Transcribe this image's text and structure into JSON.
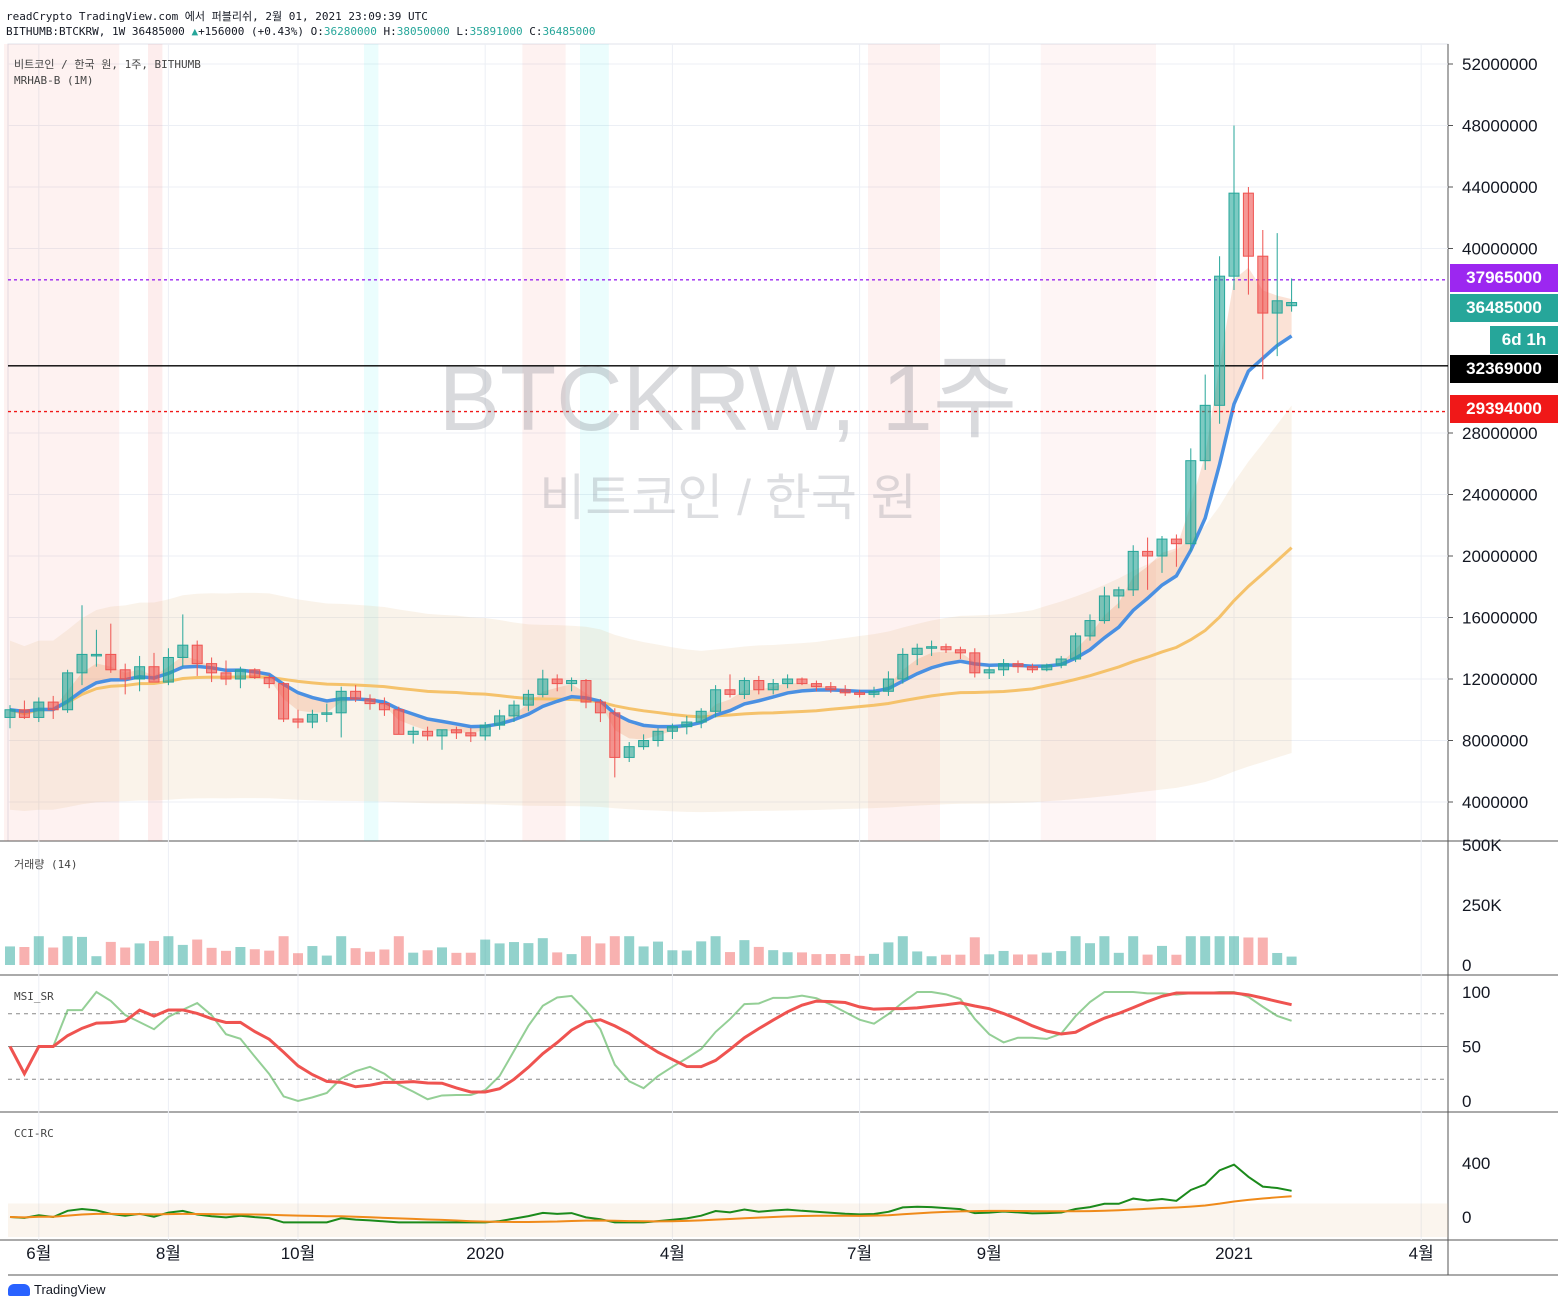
{
  "header": {
    "line1": "readCrypto TradingView.com 에서 퍼블리쉬, 2월 01, 2021 23:09:39 UTC",
    "line2_prefix": "BITHUMB:BTCKRW, 1W 36485000",
    "change": "+156000 (+0.43%)",
    "o_label": "O:",
    "o": "36280000",
    "h_label": "H:",
    "h": "38050000",
    "l_label": "L:",
    "l": "35891000",
    "c_label": "C:",
    "c": "36485000"
  },
  "main_pane": {
    "symbol_line": "비트코인 / 한국 원, 1주, BITHUMB",
    "indicator_line": "MRHAB-B (1M)",
    "watermark": "BTCKRW, 1주",
    "watermark_sub": "비트코인 / 한국 원"
  },
  "price_labels": [
    {
      "value": "37965000",
      "color": "#9c27f0"
    },
    {
      "value": "36485000",
      "color": "#26a69a"
    },
    {
      "value": "6d 1h",
      "color": "#26a69a"
    },
    {
      "value": "32369000",
      "color": "#000000"
    },
    {
      "value": "29394000",
      "color": "#f01818"
    }
  ],
  "volume_pane": {
    "title": "거래량 (14)",
    "ticks": [
      "500K",
      "250K",
      "0"
    ]
  },
  "stoch_pane": {
    "title": "MSI_SR",
    "ticks": [
      "100",
      "50",
      "0"
    ]
  },
  "cci_pane": {
    "title": "CCI-RC",
    "ticks": [
      "400",
      "0"
    ]
  },
  "footer": {
    "brand": "TradingView"
  },
  "colors": {
    "up": "#26a69a",
    "down": "#ef5350",
    "accent_purple": "#9c27f0",
    "accent_red": "#f01818"
  },
  "chart_data": {
    "type": "candlestick",
    "symbol": "BITHUMB:BTCKRW",
    "interval": "1W",
    "y_ticks": [
      4000000,
      8000000,
      12000000,
      16000000,
      20000000,
      24000000,
      28000000,
      40000000,
      44000000,
      48000000,
      52000000
    ],
    "x_ticks": [
      {
        "label": "6월",
        "index": 2
      },
      {
        "label": "8월",
        "index": 11
      },
      {
        "label": "10월",
        "index": 20
      },
      {
        "label": "2020",
        "index": 33
      },
      {
        "label": "4월",
        "index": 46
      },
      {
        "label": "7월",
        "index": 59
      },
      {
        "label": "9월",
        "index": 68
      },
      {
        "label": "2021",
        "index": 85
      },
      {
        "label": "4월",
        "index": 98
      }
    ],
    "horizontal_lines": [
      37965000,
      32369000,
      29394000
    ],
    "candles": [
      [
        9500000,
        10300000,
        8800000,
        10000000
      ],
      [
        10000000,
        10600000,
        9400000,
        9500000
      ],
      [
        9500000,
        10800000,
        9200000,
        10500000
      ],
      [
        10500000,
        10900000,
        9400000,
        10000000
      ],
      [
        10000000,
        12600000,
        9800000,
        12400000
      ],
      [
        12400000,
        16800000,
        11600000,
        13600000
      ],
      [
        13500000,
        15200000,
        12800000,
        13600000
      ],
      [
        13600000,
        15600000,
        12400000,
        12600000
      ],
      [
        12600000,
        13000000,
        11000000,
        12000000
      ],
      [
        12000000,
        13500000,
        11200000,
        12800000
      ],
      [
        12800000,
        13700000,
        11900000,
        11800000
      ],
      [
        11800000,
        14000000,
        11600000,
        13400000
      ],
      [
        13400000,
        16200000,
        12800000,
        14200000
      ],
      [
        14200000,
        14500000,
        12200000,
        13000000
      ],
      [
        13000000,
        13400000,
        11800000,
        12400000
      ],
      [
        12400000,
        13200000,
        11600000,
        12000000
      ],
      [
        12000000,
        12800000,
        11400000,
        12600000
      ],
      [
        12600000,
        12700000,
        12000000,
        12100000
      ],
      [
        12100000,
        12300000,
        11400000,
        11700000
      ],
      [
        11700000,
        11800000,
        9200000,
        9400000
      ],
      [
        9400000,
        10000000,
        8800000,
        9200000
      ],
      [
        9200000,
        10000000,
        8800000,
        9700000
      ],
      [
        9700000,
        10400000,
        9200000,
        9800000
      ],
      [
        9800000,
        11500000,
        8200000,
        11200000
      ],
      [
        11200000,
        11600000,
        10500000,
        10700000
      ],
      [
        10700000,
        11000000,
        10000000,
        10400000
      ],
      [
        10400000,
        10800000,
        9600000,
        10000000
      ],
      [
        10000000,
        10200000,
        8400000,
        8400000
      ],
      [
        8400000,
        8900000,
        7800000,
        8600000
      ],
      [
        8600000,
        8900000,
        8000000,
        8300000
      ],
      [
        8300000,
        8700000,
        7400000,
        8700000
      ],
      [
        8700000,
        8900000,
        8100000,
        8500000
      ],
      [
        8500000,
        8800000,
        7900000,
        8300000
      ],
      [
        8300000,
        9200000,
        8000000,
        9000000
      ],
      [
        9000000,
        10000000,
        8700000,
        9600000
      ],
      [
        9600000,
        10600000,
        9200000,
        10300000
      ],
      [
        10300000,
        11300000,
        9900000,
        11000000
      ],
      [
        11000000,
        12600000,
        10800000,
        12000000
      ],
      [
        12000000,
        12300000,
        11200000,
        11700000
      ],
      [
        11700000,
        12100000,
        11200000,
        11900000
      ],
      [
        11900000,
        12000000,
        10100000,
        10500000
      ],
      [
        10500000,
        10700000,
        9200000,
        9800000
      ],
      [
        9800000,
        10100000,
        5600000,
        6900000
      ],
      [
        6900000,
        7900000,
        6600000,
        7600000
      ],
      [
        7600000,
        8400000,
        7400000,
        8000000
      ],
      [
        8000000,
        8800000,
        7600000,
        8600000
      ],
      [
        8600000,
        9100000,
        8100000,
        8900000
      ],
      [
        8900000,
        9600000,
        8400000,
        9200000
      ],
      [
        9200000,
        10100000,
        8800000,
        9900000
      ],
      [
        9900000,
        11600000,
        9500000,
        11300000
      ],
      [
        11300000,
        12300000,
        10800000,
        11000000
      ],
      [
        11000000,
        12100000,
        10700000,
        11900000
      ],
      [
        11900000,
        12200000,
        11000000,
        11300000
      ],
      [
        11300000,
        12000000,
        11000000,
        11700000
      ],
      [
        11700000,
        12300000,
        11400000,
        12000000
      ],
      [
        12000000,
        12100000,
        11600000,
        11700000
      ],
      [
        11700000,
        11900000,
        11200000,
        11500000
      ],
      [
        11500000,
        11800000,
        11100000,
        11300000
      ],
      [
        11300000,
        11600000,
        10900000,
        11100000
      ],
      [
        11100000,
        11300000,
        10800000,
        11000000
      ],
      [
        11000000,
        11500000,
        10800000,
        11200000
      ],
      [
        11200000,
        12500000,
        10900000,
        12000000
      ],
      [
        12000000,
        14000000,
        11700000,
        13600000
      ],
      [
        13600000,
        14300000,
        12900000,
        14000000
      ],
      [
        14000000,
        14500000,
        13500000,
        14100000
      ],
      [
        14100000,
        14300000,
        13700000,
        13900000
      ],
      [
        13900000,
        14100000,
        13300000,
        13700000
      ],
      [
        13700000,
        14000000,
        12100000,
        12400000
      ],
      [
        12400000,
        12800000,
        12000000,
        12600000
      ],
      [
        12600000,
        13300000,
        12200000,
        13000000
      ],
      [
        13000000,
        13200000,
        12400000,
        12800000
      ],
      [
        12800000,
        13000000,
        12400000,
        12600000
      ],
      [
        12600000,
        13000000,
        12500000,
        12900000
      ],
      [
        12900000,
        13500000,
        12700000,
        13300000
      ],
      [
        13300000,
        15000000,
        13100000,
        14800000
      ],
      [
        14800000,
        16200000,
        14500000,
        15800000
      ],
      [
        15800000,
        18000000,
        15600000,
        17400000
      ],
      [
        17400000,
        18000000,
        16600000,
        17800000
      ],
      [
        17800000,
        20700000,
        17400000,
        20300000
      ],
      [
        20300000,
        21200000,
        17800000,
        20000000
      ],
      [
        20000000,
        21300000,
        18900000,
        21100000
      ],
      [
        21100000,
        21400000,
        19300000,
        20800000
      ],
      [
        20800000,
        27000000,
        20300000,
        26200000
      ],
      [
        26200000,
        31800000,
        25600000,
        29800000
      ],
      [
        29800000,
        39500000,
        28600000,
        38200000
      ],
      [
        38200000,
        48000000,
        37300000,
        43600000
      ],
      [
        43600000,
        44000000,
        37000000,
        39500000
      ],
      [
        39500000,
        41200000,
        31500000,
        35800000
      ],
      [
        35800000,
        41000000,
        33000000,
        36600000
      ],
      [
        36280000,
        38050000,
        35891000,
        36485000
      ]
    ],
    "volume": {
      "ylim": [
        0,
        500000
      ],
      "ma_length": 14
    },
    "stoch": {
      "ylim": [
        0,
        100
      ],
      "levels": [
        80,
        50,
        20
      ]
    },
    "cci": {
      "ticks": [
        400,
        0
      ]
    }
  }
}
